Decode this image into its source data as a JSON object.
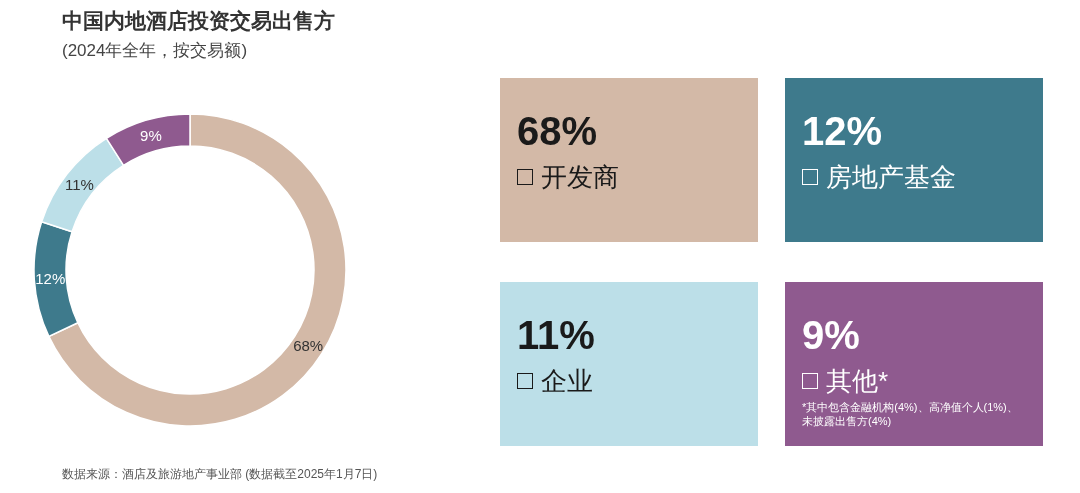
{
  "chart_data": {
    "type": "donut",
    "title": "中国内地酒店投资交易出售方",
    "subtitle": "(2024年全年，按交易额)",
    "categories": [
      "开发商",
      "房地产基金",
      "企业",
      "其他*"
    ],
    "values": [
      68,
      12,
      11,
      9
    ],
    "colors": [
      "#d3b9a7",
      "#3e7a8c",
      "#bcdfe8",
      "#8f5a8f"
    ],
    "value_labels": [
      "68%",
      "12%",
      "11%",
      "9%"
    ],
    "legend": "right",
    "annotations": [
      "*其中包含金融机构(4%)、高净值个人(1%)、未披露出售方(4%)",
      "数据来源：酒店及旅游地产事业部 (数据截至2025年1月7日)"
    ]
  }
}
